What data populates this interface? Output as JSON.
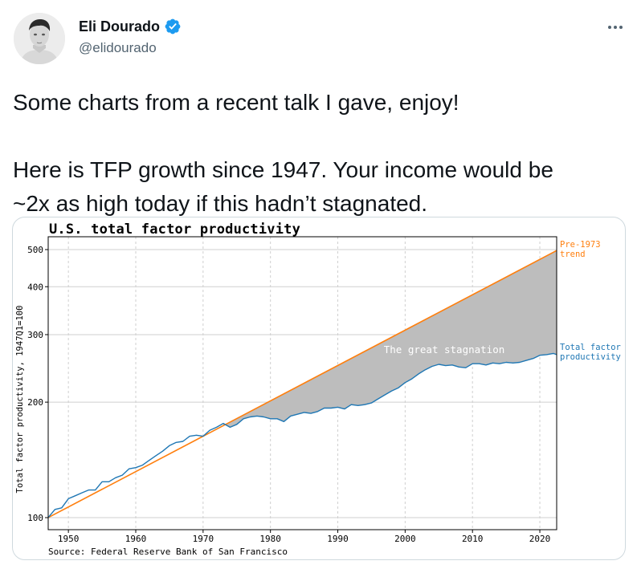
{
  "author": {
    "name": "Eli Dourado",
    "handle": "@elidourado",
    "verified": true,
    "avatar_icon": "profile-photo"
  },
  "tweet": {
    "line1": "Some charts from a recent talk I gave, enjoy!",
    "line2": "Here is TFP growth since 1947. Your income would be",
    "line3": "~2x as high today if this hadn’t stagnated."
  },
  "colors": {
    "verified": "#1d9bf0",
    "actual_series": "#1f77b4",
    "trend_series": "#ff7f0e",
    "gap_fill": "#bdbdbd"
  },
  "chart_data": {
    "type": "line",
    "title": "U.S. total factor productivity",
    "ylabel": "Total factor productivity, 1947Q1=100",
    "xlabel": "",
    "source": "Source: Federal Reserve Bank of San Francisco",
    "y_scale": "log",
    "xlim": [
      1947,
      2022.5
    ],
    "ylim": [
      93,
      540
    ],
    "grid": true,
    "x_ticks": [
      1950,
      1960,
      1970,
      1980,
      1990,
      2000,
      2010,
      2020
    ],
    "y_ticks": [
      100,
      200,
      300,
      400,
      500
    ],
    "annotation": "The great stagnation",
    "series": [
      {
        "name": "Pre-1973 trend",
        "label_lines": [
          "Pre-1973",
          "trend"
        ],
        "x": [
          1947,
          2022.5
        ],
        "y": [
          100,
          497
        ]
      },
      {
        "name": "Total factor productivity",
        "label_lines": [
          "Total factor",
          "productivity"
        ],
        "x": [
          1947,
          1948,
          1949,
          1950,
          1951,
          1952,
          1953,
          1954,
          1955,
          1956,
          1957,
          1958,
          1959,
          1960,
          1961,
          1962,
          1963,
          1964,
          1965,
          1966,
          1967,
          1968,
          1969,
          1970,
          1971,
          1972,
          1973,
          1974,
          1975,
          1976,
          1977,
          1978,
          1979,
          1980,
          1981,
          1982,
          1983,
          1984,
          1985,
          1986,
          1987,
          1988,
          1989,
          1990,
          1991,
          1992,
          1993,
          1994,
          1995,
          1996,
          1997,
          1998,
          1999,
          2000,
          2001,
          2002,
          2003,
          2004,
          2005,
          2006,
          2007,
          2008,
          2009,
          2010,
          2011,
          2012,
          2013,
          2014,
          2015,
          2016,
          2017,
          2018,
          2019,
          2020,
          2021,
          2022,
          2022.5
        ],
        "y": [
          100,
          105,
          106,
          112,
          114,
          116,
          118,
          118,
          124,
          124,
          127,
          129,
          134,
          135,
          137,
          141,
          145,
          149,
          154,
          157,
          158,
          163,
          164,
          163,
          169,
          172,
          176,
          172,
          175,
          181,
          183,
          184,
          183,
          181,
          181,
          178,
          184,
          186,
          188,
          187,
          189,
          193,
          193,
          194,
          192,
          197,
          196,
          197,
          199,
          204,
          209,
          214,
          218,
          225,
          230,
          237,
          243,
          248,
          251,
          249,
          250,
          247,
          246,
          252,
          252,
          250,
          253,
          252,
          254,
          253,
          254,
          257,
          260,
          265,
          266,
          268,
          266
        ]
      }
    ]
  }
}
